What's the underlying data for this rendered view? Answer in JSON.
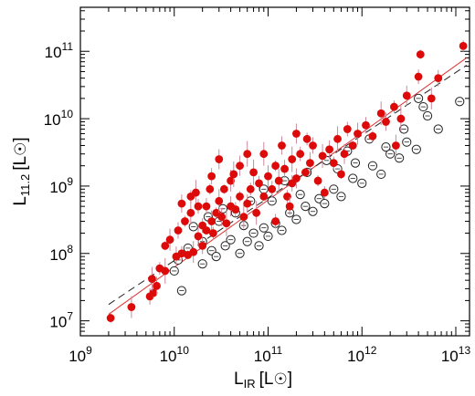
{
  "chart_data": {
    "type": "scatter",
    "title": "",
    "xlabel": {
      "main": "L",
      "sub": "IR",
      "unit": "[L",
      "unit_close": "]"
    },
    "ylabel": {
      "main": "L",
      "sub": "11.2",
      "unit": "[L",
      "unit_close": "]"
    },
    "x_scale": "log",
    "y_scale": "log",
    "xlim": [
      1000000000.0,
      14000000000000.0
    ],
    "ylim": [
      6000000.0,
      450000000000.0
    ],
    "x_ticks": [
      {
        "value": 1000000000.0,
        "base": "10",
        "exp": "9"
      },
      {
        "value": 10000000000.0,
        "base": "10",
        "exp": "10"
      },
      {
        "value": 100000000000.0,
        "base": "10",
        "exp": "11"
      },
      {
        "value": 1000000000000.0,
        "base": "10",
        "exp": "12"
      },
      {
        "value": 10000000000000.0,
        "base": "10",
        "exp": "13"
      }
    ],
    "y_ticks": [
      {
        "value": 10000000.0,
        "base": "10",
        "exp": "7"
      },
      {
        "value": 100000000.0,
        "base": "10",
        "exp": "8"
      },
      {
        "value": 1000000000.0,
        "base": "10",
        "exp": "9"
      },
      {
        "value": 10000000000.0,
        "base": "10",
        "exp": "10"
      },
      {
        "value": 100000000000.0,
        "base": "10",
        "exp": "11"
      }
    ],
    "grid": false,
    "colors": {
      "filled": "#dd0a0a",
      "filled_err": "#c98a9a",
      "open": "#222222",
      "fit": "#e03030",
      "dashed": "#222222"
    },
    "series": [
      {
        "marker": "filled-circle",
        "points": [
          [
            2100000000.0,
            11000000.0
          ],
          [
            3500000000.0,
            16000000.0
          ],
          [
            5500000000.0,
            23000000.0
          ],
          [
            6000000000.0,
            26000000.0
          ],
          [
            5800000000.0,
            42000000.0
          ],
          [
            6500000000.0,
            33000000.0
          ],
          [
            7000000000.0,
            60000000.0
          ],
          [
            8000000000.0,
            55000000.0
          ],
          [
            10500000000.0,
            90000000.0
          ],
          [
            12000000000.0,
            100000000.0
          ],
          [
            14000000000.0,
            95000000.0
          ],
          [
            16000000000.0,
            105000000.0
          ],
          [
            11000000000.0,
            220000000.0
          ],
          [
            13000000000.0,
            300000000.0
          ],
          [
            15000000000.0,
            400000000.0
          ],
          [
            12000000000.0,
            550000000.0
          ],
          [
            15000000000.0,
            700000000.0
          ],
          [
            17000000000.0,
            800000000.0
          ],
          [
            18000000000.0,
            180000000.0
          ],
          [
            20000000000.0,
            260000000.0
          ],
          [
            22000000000.0,
            220000000.0
          ],
          [
            25000000000.0,
            300000000.0
          ],
          [
            22000000000.0,
            500000000.0
          ],
          [
            28000000000.0,
            400000000.0
          ],
          [
            30000000000.0,
            600000000.0
          ],
          [
            32000000000.0,
            350000000.0
          ],
          [
            26000000000.0,
            200000000.0
          ],
          [
            36000000000.0,
            280000000.0
          ],
          [
            40000000000.0,
            500000000.0
          ],
          [
            45000000000.0,
            450000000.0
          ],
          [
            34000000000.0,
            900000000.0
          ],
          [
            40000000000.0,
            1200000000.0
          ],
          [
            25000000000.0,
            1400000000.0
          ],
          [
            50000000000.0,
            700000000.0
          ],
          [
            55000000000.0,
            350000000.0
          ],
          [
            60000000000.0,
            550000000.0
          ],
          [
            65000000000.0,
            900000000.0
          ],
          [
            70000000000.0,
            1600000000.0
          ],
          [
            50000000000.0,
            2000000000.0
          ],
          [
            80000000000.0,
            1100000000.0
          ],
          [
            90000000000.0,
            700000000.0
          ],
          [
            100000000000.0,
            1400000000.0
          ],
          [
            110000000000.0,
            900000000.0
          ],
          [
            120000000000.0,
            2000000000.0
          ],
          [
            130000000000.0,
            1200000000.0
          ],
          [
            150000000000.0,
            1800000000.0
          ],
          [
            160000000000.0,
            700000000.0
          ],
          [
            180000000000.0,
            2500000000.0
          ],
          [
            200000000000.0,
            1300000000.0
          ],
          [
            220000000000.0,
            3000000000.0
          ],
          [
            250000000000.0,
            1600000000.0
          ],
          [
            280000000000.0,
            2200000000.0
          ],
          [
            300000000000.0,
            4000000000.0
          ],
          [
            340000000000.0,
            1200000000.0
          ],
          [
            380000000000.0,
            2800000000.0
          ],
          [
            450000000000.0,
            3500000000.0
          ],
          [
            500000000000.0,
            2200000000.0
          ],
          [
            550000000000.0,
            5000000000.0
          ],
          [
            650000000000.0,
            3000000000.0
          ],
          [
            700000000000.0,
            7000000000.0
          ],
          [
            800000000000.0,
            4000000000.0
          ],
          [
            900000000000.0,
            6000000000.0
          ],
          [
            1100000000000.0,
            8000000000.0
          ],
          [
            1300000000000.0,
            5500000000.0
          ],
          [
            1600000000000.0,
            12000000000.0
          ],
          [
            1800000000000.0,
            9000000000.0
          ],
          [
            2200000000000.0,
            15000000000.0
          ],
          [
            2600000000000.0,
            10000000000.0
          ],
          [
            3000000000000.0,
            22000000000.0
          ],
          [
            4000000000000.0,
            42000000000.0
          ],
          [
            4200000000000.0,
            90000000000.0
          ],
          [
            5500000000000.0,
            20000000000.0
          ],
          [
            6500000000000.0,
            40000000000.0
          ],
          [
            12000000000000.0,
            120000000000.0
          ],
          [
            90000000000.0,
            3000000000.0
          ],
          [
            140000000000.0,
            4000000000.0
          ],
          [
            260000000000.0,
            5000000000.0
          ],
          [
            60000000000.0,
            3000000000.0
          ],
          [
            30000000000.0,
            2500000000.0
          ],
          [
            18000000000.0,
            500000000.0
          ],
          [
            8000000000.0,
            130000000.0
          ],
          [
            9000000000.0,
            160000000.0
          ],
          [
            20000000000.0,
            130000000.0
          ],
          [
            24000000000.0,
            900000000.0
          ],
          [
            75000000000.0,
            400000000.0
          ],
          [
            170000000000.0,
            500000000.0
          ],
          [
            400000000000.0,
            800000000.0
          ],
          [
            43000000000.0,
            1500000000.0
          ],
          [
            200000000000.0,
            6000000000.0
          ],
          [
            120000000000.0,
            300000000.0
          ],
          [
            600000000000.0,
            1500000000.0
          ],
          [
            2300000000000.0,
            4000000000.0
          ],
          [
            180000000000.0,
            1100000000.0
          ]
        ]
      },
      {
        "marker": "open-circle",
        "points": [
          [
            12000000000.0,
            28000000.0
          ],
          [
            10000000000.0,
            55000000.0
          ],
          [
            11000000000.0,
            80000000.0
          ],
          [
            14000000000.0,
            120000000.0
          ],
          [
            20000000000.0,
            70000000.0
          ],
          [
            25000000000.0,
            110000000.0
          ],
          [
            28000000000.0,
            90000000.0
          ],
          [
            35000000000.0,
            130000000.0
          ],
          [
            40000000000.0,
            160000000.0
          ],
          [
            50000000000.0,
            100000000.0
          ],
          [
            60000000000.0,
            150000000.0
          ],
          [
            70000000000.0,
            200000000.0
          ],
          [
            80000000000.0,
            130000000.0
          ],
          [
            90000000000.0,
            240000000.0
          ],
          [
            100000000000.0,
            180000000.0
          ],
          [
            120000000000.0,
            280000000.0
          ],
          [
            140000000000.0,
            220000000.0
          ],
          [
            170000000000.0,
            400000000.0
          ],
          [
            200000000000.0,
            320000000.0
          ],
          [
            250000000000.0,
            500000000.0
          ],
          [
            300000000000.0,
            420000000.0
          ],
          [
            350000000000.0,
            650000000.0
          ],
          [
            400000000000.0,
            550000000.0
          ],
          [
            500000000000.0,
            900000000.0
          ],
          [
            600000000000.0,
            700000000.0
          ],
          [
            800000000000.0,
            1300000000.0
          ],
          [
            1000000000000.0,
            1100000000.0
          ],
          [
            1300000000000.0,
            2000000000.0
          ],
          [
            1600000000000.0,
            1500000000.0
          ],
          [
            2000000000000.0,
            3000000000.0
          ],
          [
            2500000000000.0,
            2600000000.0
          ],
          [
            3000000000000.0,
            4500000000.0
          ],
          [
            3800000000000.0,
            3500000000.0
          ],
          [
            4500000000000.0,
            15000000000.0
          ],
          [
            5000000000000.0,
            11000000000.0
          ],
          [
            6500000000000.0,
            7000000000.0
          ],
          [
            11000000000000.0,
            18000000000.0
          ],
          [
            4000000000000.0,
            20000000000.0
          ],
          [
            30000000000.0,
            300000000.0
          ],
          [
            45000000000.0,
            400000000.0
          ],
          [
            65000000000.0,
            600000000.0
          ],
          [
            90000000000.0,
            900000000.0
          ],
          [
            150000000000.0,
            1200000000.0
          ],
          [
            260000000000.0,
            1600000000.0
          ],
          [
            420000000000.0,
            2400000000.0
          ],
          [
            700000000000.0,
            3300000000.0
          ],
          [
            1200000000000.0,
            5000000000.0
          ],
          [
            20000000000.0,
            150000000.0
          ],
          [
            16000000000.0,
            250000000.0
          ],
          [
            23000000000.0,
            350000000.0
          ],
          [
            33000000000.0,
            460000000.0
          ],
          [
            55000000000.0,
            260000000.0
          ],
          [
            110000000000.0,
            600000000.0
          ],
          [
            220000000000.0,
            750000000.0
          ],
          [
            550000000000.0,
            1800000000.0
          ],
          [
            850000000000.0,
            2200000000.0
          ],
          [
            1800000000000.0,
            3800000000.0
          ],
          [
            2800000000000.0,
            7000000000.0
          ]
        ]
      }
    ],
    "fits": [
      {
        "style": "solid",
        "from": [
          2000000000.0,
          12500000.0
        ],
        "to": [
          13000000000000.0,
          80000000000.0
        ]
      },
      {
        "style": "dashed",
        "from": [
          2000000000.0,
          17500000.0
        ],
        "to": [
          13000000000000.0,
          62000000000.0
        ]
      }
    ]
  }
}
